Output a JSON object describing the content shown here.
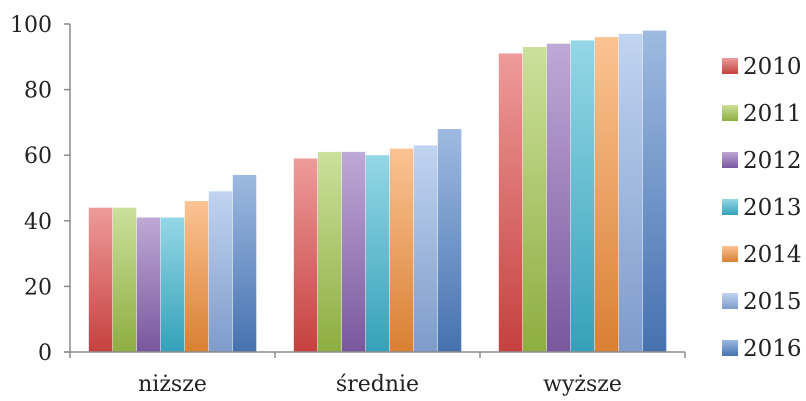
{
  "chart_data": {
    "type": "bar",
    "categories": [
      "niższe",
      "średnie",
      "wyższe"
    ],
    "series": [
      {
        "name": "2010",
        "values": [
          44,
          59,
          91
        ],
        "color": "#e04a48"
      },
      {
        "name": "2011",
        "values": [
          44,
          61,
          93
        ],
        "color": "#a0c64a"
      },
      {
        "name": "2012",
        "values": [
          41,
          61,
          94
        ],
        "color": "#8a63b4"
      },
      {
        "name": "2013",
        "values": [
          41,
          60,
          95
        ],
        "color": "#3cb7d2"
      },
      {
        "name": "2014",
        "values": [
          46,
          62,
          96
        ],
        "color": "#f7923a"
      },
      {
        "name": "2015",
        "values": [
          49,
          63,
          97
        ],
        "color": "#8fb0e6"
      },
      {
        "name": "2016",
        "values": [
          54,
          68,
          98
        ],
        "color": "#4f81c8"
      }
    ],
    "ylim": [
      0,
      100
    ],
    "yticks": [
      "0",
      "20",
      "40",
      "60",
      "80",
      "100"
    ],
    "grid": false,
    "legend_position": "right"
  }
}
